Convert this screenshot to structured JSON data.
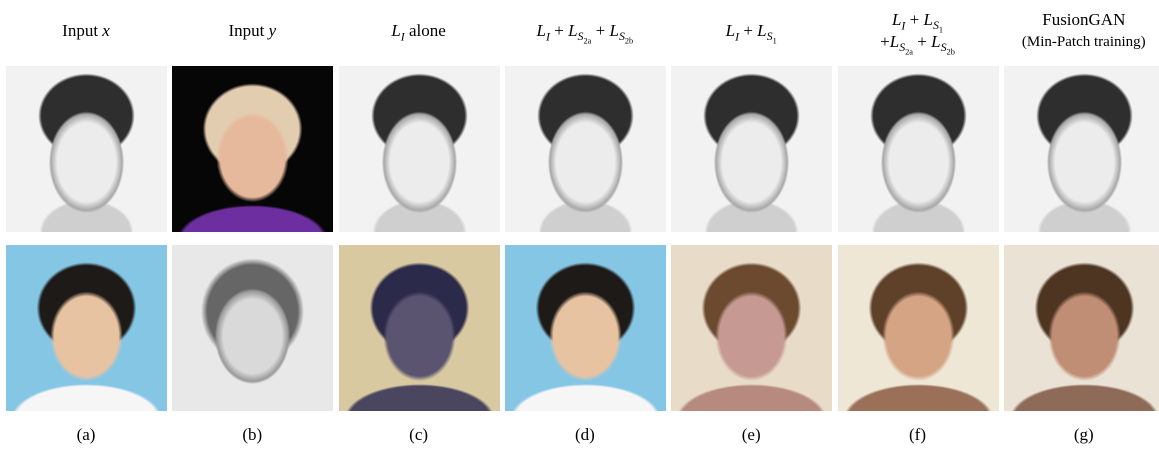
{
  "columns": [
    {
      "header": [
        [
          "Input ",
          {
            "math": "x"
          }
        ]
      ],
      "caption": "(a)"
    },
    {
      "header": [
        [
          "Input ",
          {
            "math": "y"
          }
        ]
      ],
      "caption": "(b)"
    },
    {
      "header": [
        [
          {
            "math": "L",
            "sub": [
              {
                "math": "I"
              }
            ]
          },
          " alone"
        ]
      ],
      "caption": "(c)"
    },
    {
      "header": [
        [
          {
            "math": "L",
            "sub": [
              {
                "math": "I"
              }
            ]
          },
          " + ",
          {
            "math": "L",
            "sub": [
              {
                "math": "S",
                "sub": [
                  "2a"
                ]
              }
            ]
          },
          " + ",
          {
            "math": "L",
            "sub": [
              {
                "math": "S",
                "sub": [
                  "2b"
                ]
              }
            ]
          }
        ]
      ],
      "caption": "(d)"
    },
    {
      "header": [
        [
          {
            "math": "L",
            "sub": [
              {
                "math": "I"
              }
            ]
          },
          " + ",
          {
            "math": "L",
            "sub": [
              {
                "math": "S",
                "sub": [
                  "1"
                ]
              }
            ]
          }
        ]
      ],
      "caption": "(e)"
    },
    {
      "header": [
        [
          {
            "math": "L",
            "sub": [
              {
                "math": "I"
              }
            ]
          },
          " + ",
          {
            "math": "L",
            "sub": [
              {
                "math": "S",
                "sub": [
                  "1"
                ]
              }
            ]
          }
        ],
        [
          "+",
          {
            "math": "L",
            "sub": [
              {
                "math": "S",
                "sub": [
                  "2a"
                ]
              }
            ]
          },
          " + ",
          {
            "math": "L",
            "sub": [
              {
                "math": "S",
                "sub": [
                  "2b"
                ]
              }
            ]
          }
        ]
      ],
      "caption": "(f)"
    },
    {
      "header": [
        [
          "FusionGAN"
        ],
        [
          "(Min-Patch training)"
        ]
      ],
      "caption": "(g)"
    }
  ]
}
